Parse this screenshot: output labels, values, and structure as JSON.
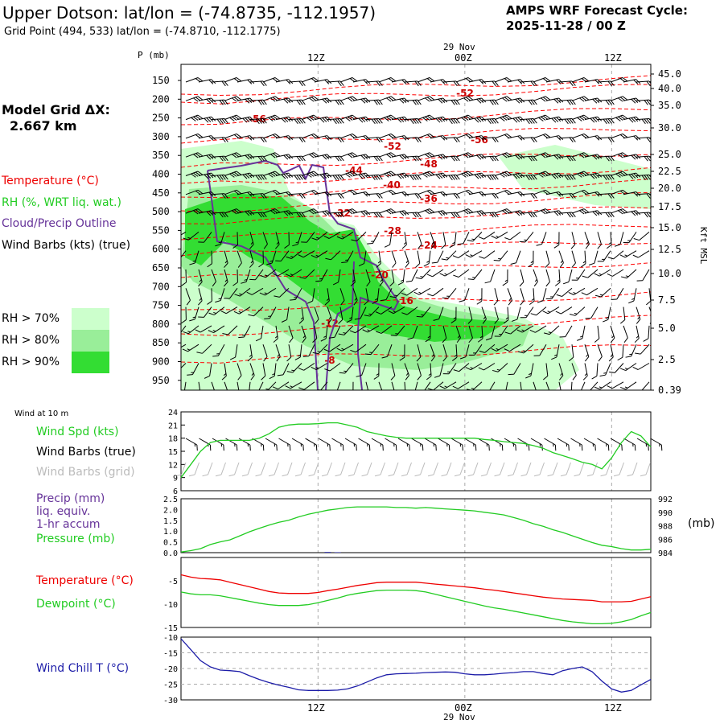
{
  "header": {
    "station_title": "Upper Dotson:  lat/lon = (-74.8735, -112.1957)",
    "grid_point": "Grid Point (494, 533) lat/lon = (-74.8710, -112.1775)",
    "forecast_label": "AMPS WRF Forecast Cycle:",
    "forecast_cycle": "2025-11-28 / 00  Z"
  },
  "model": {
    "grid_label": "Model Grid ΔX:",
    "grid_value": "2.667 km"
  },
  "legend": {
    "temperature": "Temperature (°C)",
    "rh": "RH (%, WRT liq. wat.)",
    "cloud": "Cloud/Precip Outline",
    "wind": "Wind Barbs (kts) (true)",
    "rh_levels": [
      {
        "label": "RH > 70%",
        "color": "#ccffcc"
      },
      {
        "label": "RH > 80%",
        "color": "#99ee99"
      },
      {
        "label": "RH > 90%",
        "color": "#33dd33"
      }
    ]
  },
  "colors": {
    "temperature_line": "#ff0000",
    "temperature_label": "#cc0000",
    "rh_dark": "#33dd33",
    "rh_mid": "#99ee99",
    "rh_light": "#ccffcc",
    "cloud_outline": "#663399",
    "wind_speed": "#22cc22",
    "grid_barbs": "#bbbbbb",
    "precip_text": "#663399",
    "pressure": "#22cc22",
    "dewpoint": "#22cc22",
    "windchill": "#1c1ca8",
    "gridline": "#aaaaaa"
  },
  "time_axis": {
    "date_label": "29 Nov",
    "ticks": [
      "12Z",
      "00Z",
      "12Z"
    ]
  },
  "cross_section": {
    "y_label": "P (mb)",
    "right_label": "Kft MSL",
    "pressure_levels": [
      "150",
      "200",
      "250",
      "300",
      "350",
      "400",
      "450",
      "500",
      "550",
      "600",
      "650",
      "700",
      "750",
      "800",
      "850",
      "900",
      "950"
    ],
    "height_labels": [
      "45.0",
      "40.0",
      "35.0",
      "30.0",
      "25.0",
      "22.5",
      "20.0",
      "17.5",
      "15.0",
      "12.5",
      "10.0",
      "7.5",
      "5.0",
      "2.5",
      "0.39"
    ],
    "temp_labels": [
      "-52",
      "-56",
      "-56",
      "-52",
      "-48",
      "-44",
      "-40",
      "-36",
      "-32",
      "-28",
      "-24",
      "-20",
      "-16",
      "-12",
      "-8"
    ]
  },
  "surface": {
    "title": "Wind at 10 m",
    "wind_spd_label": "Wind Spd (kts)",
    "wind_barbs_true_label": "Wind Barbs (true)",
    "wind_barbs_grid_label": "Wind Barbs (grid)",
    "precip_label_1": "Precip (mm)",
    "precip_label_2": "liq. equiv.",
    "precip_label_3": "1-hr accum",
    "pressure_label": "Pressure (mb)",
    "pressure_unit": "(mb)",
    "temperature_label": "Temperature (°C)",
    "dewpoint_label": "Dewpoint (°C)",
    "windchill_label": "Wind Chill T (°C)"
  },
  "chart_data": [
    {
      "type": "line",
      "panel": "wind_speed",
      "title": "Wind Spd (kts)",
      "ylim": [
        6,
        24
      ],
      "yticks": [
        "24",
        "21",
        "18",
        "15",
        "12",
        "9",
        "6"
      ],
      "x_hours": [
        0,
        1,
        2,
        3,
        4,
        5,
        6,
        7,
        8,
        9,
        10,
        11,
        12,
        13,
        14,
        15,
        16,
        17,
        18,
        19,
        20,
        21,
        22,
        23,
        24,
        25,
        26,
        27,
        28,
        29,
        30,
        31,
        32,
        33,
        34,
        35,
        36,
        37,
        38,
        39,
        40,
        41,
        42,
        43,
        44,
        45,
        46,
        47,
        48
      ],
      "values": [
        9,
        12,
        15,
        17,
        17.5,
        17.5,
        17.5,
        17.5,
        18,
        19,
        20.5,
        21,
        21.2,
        21.2,
        21.3,
        21.5,
        21.5,
        21,
        20.5,
        19.5,
        19,
        18.5,
        18.2,
        18,
        18,
        18,
        18,
        18,
        18,
        18,
        18,
        17.7,
        17.5,
        17.2,
        17,
        16.8,
        16.3,
        15.7,
        14.7,
        14,
        13.3,
        12.5,
        12,
        11,
        13.5,
        17,
        19.5,
        18.5,
        16
      ]
    },
    {
      "type": "line",
      "panel": "pressure_precip",
      "series": [
        {
          "name": "Pressure (mb)",
          "axis": "right",
          "ylim": [
            984,
            992
          ],
          "values": [
            984.1,
            984.3,
            984.6,
            985.2,
            985.6,
            985.9,
            986.5,
            987.1,
            987.6,
            988.1,
            988.5,
            988.8,
            989.3,
            989.7,
            990,
            990.3,
            990.5,
            990.7,
            990.8,
            990.8,
            990.8,
            990.8,
            990.7,
            990.7,
            990.6,
            990.7,
            990.6,
            990.5,
            990.4,
            990.3,
            990.2,
            990,
            989.8,
            989.6,
            989.2,
            988.8,
            988.3,
            987.9,
            987.4,
            987,
            986.5,
            986,
            985.5,
            985.1,
            984.9,
            984.6,
            984.4,
            984.4,
            984.5
          ]
        },
        {
          "name": "Precip (mm)",
          "axis": "left",
          "ylim": [
            0,
            2.5
          ],
          "values": [
            0,
            0,
            0,
            0,
            0,
            0,
            0,
            0,
            0,
            0,
            0,
            0,
            0,
            0,
            0,
            0.03,
            0.02,
            0,
            0,
            0,
            0,
            0,
            0,
            0,
            0,
            0,
            0,
            0,
            0,
            0,
            0,
            0,
            0,
            0,
            0,
            0,
            0,
            0,
            0,
            0,
            0,
            0,
            0,
            0,
            0,
            0,
            0,
            0,
            0
          ]
        }
      ],
      "y_left_ticks": [
        "2.5",
        "2.0",
        "1.5",
        "1.0",
        "0.5",
        "0.0"
      ],
      "y_right_ticks": [
        "992",
        "990",
        "988",
        "986",
        "984"
      ]
    },
    {
      "type": "line",
      "panel": "temperature",
      "ylim": [
        -15,
        0
      ],
      "yticks": [
        "-5",
        "-10",
        "-15"
      ],
      "series": [
        {
          "name": "Temperature (°C)",
          "values": [
            -3.7,
            -4.2,
            -4.5,
            -4.6,
            -4.8,
            -5.3,
            -5.8,
            -6.3,
            -6.8,
            -7.3,
            -7.6,
            -7.7,
            -7.7,
            -7.7,
            -7.5,
            -7.1,
            -6.8,
            -6.4,
            -6,
            -5.7,
            -5.4,
            -5.3,
            -5.3,
            -5.3,
            -5.3,
            -5.5,
            -5.7,
            -5.9,
            -6.1,
            -6.3,
            -6.5,
            -6.8,
            -7,
            -7.3,
            -7.6,
            -7.9,
            -8.2,
            -8.5,
            -8.7,
            -8.9,
            -9,
            -9.1,
            -9.2,
            -9.5,
            -9.5,
            -9.5,
            -9.4,
            -8.9,
            -8.4
          ]
        },
        {
          "name": "Dewpoint (°C)",
          "values": [
            -7.4,
            -7.8,
            -8,
            -8,
            -8.2,
            -8.6,
            -9,
            -9.4,
            -9.8,
            -10.1,
            -10.3,
            -10.3,
            -10.3,
            -10.1,
            -9.7,
            -9.2,
            -8.7,
            -8.1,
            -7.7,
            -7.4,
            -7.1,
            -7,
            -7,
            -7,
            -7.1,
            -7.4,
            -7.9,
            -8.4,
            -8.9,
            -9.4,
            -9.9,
            -10.4,
            -10.8,
            -11.1,
            -11.5,
            -11.9,
            -12.3,
            -12.7,
            -13.1,
            -13.5,
            -13.8,
            -14,
            -14.2,
            -14.2,
            -14.1,
            -13.8,
            -13.3,
            -12.5,
            -11.8
          ]
        }
      ]
    },
    {
      "type": "line",
      "panel": "wind_chill",
      "ylim": [
        -30,
        -10
      ],
      "yticks": [
        "-10",
        "-15",
        "-20",
        "-25",
        "-30"
      ],
      "series": [
        {
          "name": "Wind Chill T (°C)",
          "values": [
            -10.5,
            -14,
            -17.5,
            -19.5,
            -20.5,
            -20.7,
            -21,
            -22.3,
            -23.5,
            -24.5,
            -25.3,
            -26,
            -26.8,
            -27,
            -27,
            -27,
            -26.9,
            -26.5,
            -25.6,
            -24.3,
            -23,
            -22,
            -21.7,
            -21.6,
            -21.5,
            -21.3,
            -21.2,
            -21.1,
            -21.2,
            -21.7,
            -22,
            -22,
            -21.8,
            -21.5,
            -21.3,
            -21,
            -21,
            -21.6,
            -22,
            -20.7,
            -20,
            -19.5,
            -21,
            -24,
            -26.5,
            -27.5,
            -27,
            -25.2,
            -23.5
          ]
        }
      ]
    }
  ]
}
